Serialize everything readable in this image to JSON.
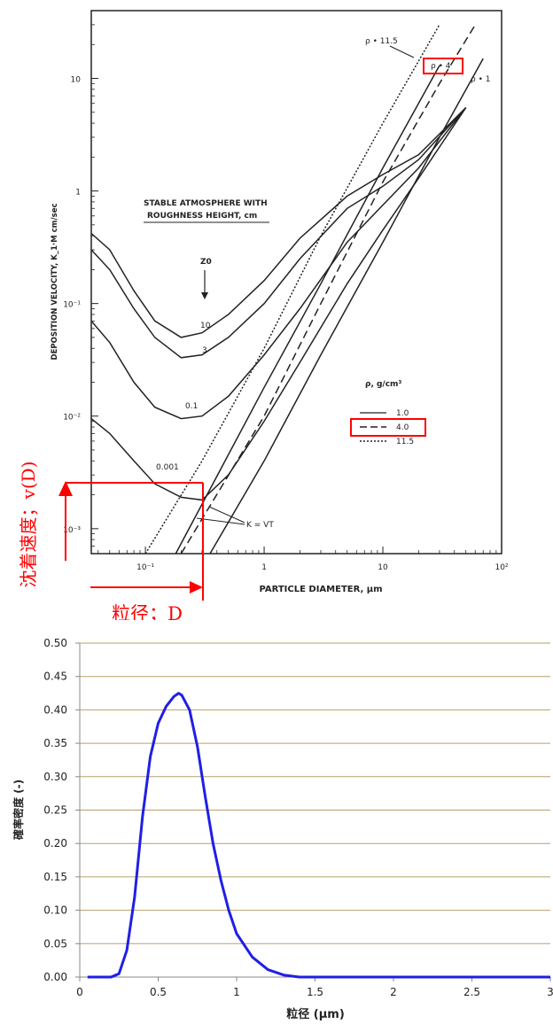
{
  "chart_data": [
    {
      "type": "line",
      "scale": "log-log",
      "xlabel": "PARTICLE DIAMETER, μm",
      "ylabel": "DEPOSITION VELOCITY, K_1·M  cm/sec",
      "x_tick_labels": [
        "10⁻¹",
        "1",
        "10",
        "10²"
      ],
      "y_tick_labels": [
        "10⁻³",
        "10⁻²",
        "10⁻¹",
        "1",
        "10"
      ],
      "xlim": [
        0.035,
        100
      ],
      "ylim": [
        0.0006,
        40
      ],
      "inset_title_line1": "STABLE ATMOSPHERE WITH",
      "inset_title_line2": "ROUGHNESS HEIGHT, cm",
      "z0_symbol": "Z0",
      "roughness_labels": [
        "10",
        "3",
        "0.1",
        "0.001"
      ],
      "density_labels": [
        "ρ • 11.5",
        "ρ • 4",
        "ρ • 1"
      ],
      "legend_title": "ρ, g/cm³",
      "legend_entries": [
        "1.0",
        "4.0",
        "11.5"
      ],
      "settling_label": "K = VT",
      "series": [
        {
          "name": "1.0",
          "style": "solid",
          "curves": [
            {
              "z0": "10",
              "x": [
                0.035,
                0.05,
                0.08,
                0.12,
                0.2,
                0.3,
                0.5,
                1,
                2,
                5,
                10,
                20,
                50
              ],
              "y": [
                0.42,
                0.3,
                0.13,
                0.07,
                0.05,
                0.055,
                0.08,
                0.16,
                0.38,
                0.9,
                1.4,
                2.1,
                5.5
              ]
            },
            {
              "z0": "3",
              "x": [
                0.035,
                0.05,
                0.08,
                0.12,
                0.2,
                0.3,
                0.5,
                1,
                2,
                5,
                10,
                20,
                50
              ],
              "y": [
                0.3,
                0.2,
                0.09,
                0.05,
                0.033,
                0.035,
                0.05,
                0.1,
                0.25,
                0.7,
                1.1,
                1.9,
                5.5
              ]
            },
            {
              "z0": "0.1",
              "x": [
                0.035,
                0.05,
                0.08,
                0.12,
                0.2,
                0.3,
                0.5,
                1,
                2,
                5,
                10,
                20,
                50
              ],
              "y": [
                0.07,
                0.045,
                0.02,
                0.012,
                0.0095,
                0.01,
                0.015,
                0.035,
                0.09,
                0.35,
                0.75,
                1.6,
                5.5
              ]
            },
            {
              "z0": "0.001",
              "x": [
                0.035,
                0.05,
                0.08,
                0.12,
                0.2,
                0.3,
                0.5,
                1,
                2,
                5,
                10,
                20,
                50
              ],
              "y": [
                0.0095,
                0.007,
                0.004,
                0.0025,
                0.0019,
                0.0018,
                0.003,
                0.009,
                0.03,
                0.15,
                0.45,
                1.3,
                5.5
              ]
            }
          ]
        },
        {
          "name": "4.0",
          "style": "dashed",
          "x": [
            0.2,
            1,
            3,
            10,
            30,
            60
          ],
          "y": [
            0.0006,
            0.01,
            0.1,
            1.2,
            9,
            30
          ]
        },
        {
          "name": "11.5",
          "style": "dotted",
          "x": [
            0.1,
            0.3,
            1,
            3,
            10,
            30
          ],
          "y": [
            0.0006,
            0.004,
            0.04,
            0.4,
            4,
            30
          ]
        },
        {
          "name": "K = VT (ρ=1)",
          "style": "solid",
          "x": [
            0.35,
            1,
            3,
            10,
            30,
            70
          ],
          "y": [
            0.0006,
            0.004,
            0.035,
            0.35,
            3,
            15
          ]
        },
        {
          "name": "K = VT (ρ=4)",
          "style": "solid",
          "x": [
            0.18,
            1,
            3,
            10,
            30
          ],
          "y": [
            0.0006,
            0.018,
            0.15,
            1.6,
            13
          ]
        }
      ],
      "annotations": {
        "y_label": "沈着速度；v(D)",
        "x_label": "粒径；D",
        "marker_x": 0.25,
        "marker_y": 0.0025,
        "color": "#ff0000"
      }
    },
    {
      "type": "line",
      "xlabel": "粒径 (μm)",
      "ylabel": "確率密度 (-)",
      "xlim": [
        0,
        3
      ],
      "ylim": [
        0,
        0.5
      ],
      "x_tick_labels": [
        "0",
        "0.5",
        "1",
        "1.5",
        "2",
        "2.5",
        "3"
      ],
      "y_tick_labels": [
        "0.00",
        "0.05",
        "0.10",
        "0.15",
        "0.20",
        "0.25",
        "0.30",
        "0.35",
        "0.40",
        "0.45",
        "0.50"
      ],
      "grid": true,
      "line_color": "#1f1fe6",
      "grid_color": "#b8a06a",
      "series": [
        {
          "x": [
            0.05,
            0.1,
            0.2,
            0.25,
            0.3,
            0.35,
            0.4,
            0.45,
            0.5,
            0.55,
            0.6,
            0.63,
            0.65,
            0.7,
            0.75,
            0.8,
            0.85,
            0.9,
            0.95,
            1.0,
            1.1,
            1.2,
            1.3,
            1.4,
            1.5,
            2.0,
            2.5,
            3.0
          ],
          "y": [
            0.0,
            0.0,
            0.0,
            0.005,
            0.04,
            0.12,
            0.24,
            0.33,
            0.38,
            0.405,
            0.42,
            0.425,
            0.422,
            0.4,
            0.345,
            0.27,
            0.2,
            0.145,
            0.1,
            0.065,
            0.03,
            0.011,
            0.003,
            0.0,
            0.0,
            0.0,
            0.0,
            0.0
          ]
        }
      ]
    }
  ]
}
